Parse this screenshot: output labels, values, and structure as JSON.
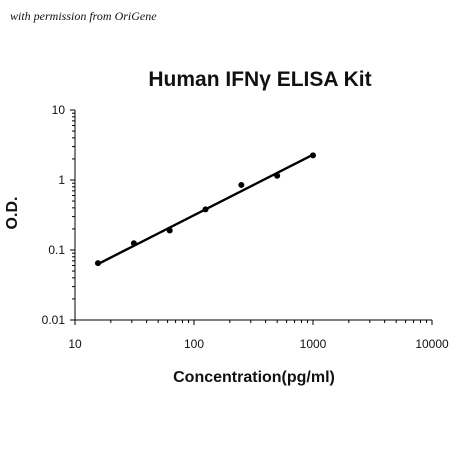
{
  "watermark": "with permission from OriGene",
  "chart_data": {
    "type": "scatter",
    "title": "Human IFNγ ELISA Kit",
    "xlabel": "Concentration(pg/ml)",
    "ylabel": "O.D.",
    "xscale": "log",
    "yscale": "log",
    "xlim": [
      10,
      10000
    ],
    "ylim": [
      0.01,
      10
    ],
    "xticks": [
      "10",
      "100",
      "1000",
      "10000"
    ],
    "yticks": [
      "0.01",
      "0.1",
      "1",
      "10"
    ],
    "grid": false,
    "legend": "none",
    "series": [
      {
        "x": [
          15.6,
          31.25,
          62.5,
          125,
          250,
          500,
          1000
        ],
        "y": [
          0.065,
          0.125,
          0.19,
          0.38,
          0.85,
          1.15,
          2.25
        ]
      }
    ],
    "fit_line": {
      "x": [
        15.6,
        1000
      ],
      "y": [
        0.063,
        2.3
      ]
    },
    "colors": {
      "marker": "#000000",
      "line": "#000000",
      "axis": "#000000"
    }
  }
}
